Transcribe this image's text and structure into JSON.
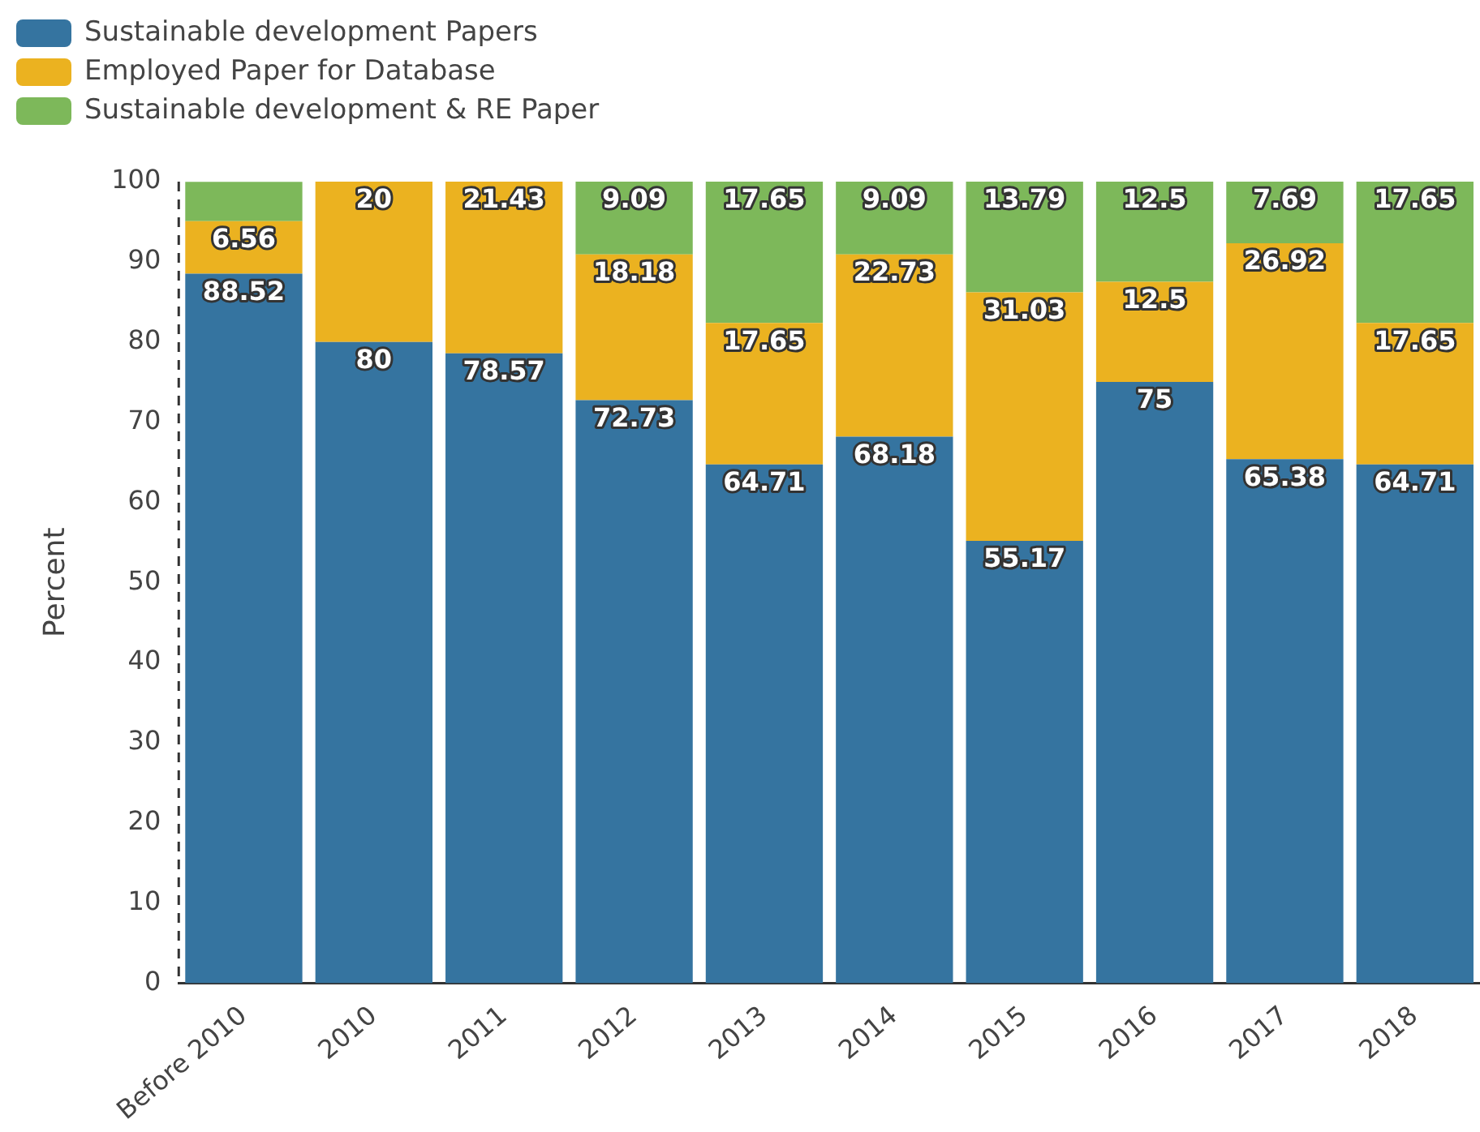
{
  "chart_data": {
    "type": "bar",
    "stacked": true,
    "ylabel": "Percent",
    "categories": [
      "Before 2010",
      "2010",
      "2011",
      "2012",
      "2013",
      "2014",
      "2015",
      "2016",
      "2017",
      "2018"
    ],
    "series": [
      {
        "name": "Sustainable development Papers",
        "color": "#3574a0",
        "values": [
          88.52,
          80,
          78.57,
          72.73,
          64.71,
          68.18,
          55.17,
          75,
          65.38,
          64.71
        ],
        "value_labels": [
          "88.52",
          "80",
          "78.57",
          "72.73",
          "64.71",
          "68.18",
          "55.17",
          "75",
          "65.38",
          "64.71"
        ]
      },
      {
        "name": "Employed Paper for Database",
        "color": "#ebb220",
        "values": [
          6.56,
          20,
          21.43,
          18.18,
          17.65,
          22.73,
          31.03,
          12.5,
          26.92,
          17.65
        ],
        "value_labels": [
          "6.56",
          "20",
          "21.43",
          "18.18",
          "17.65",
          "22.73",
          "31.03",
          "12.5",
          "26.92",
          "17.65"
        ]
      },
      {
        "name": "Sustainable development & RE Paper",
        "color": "#7db85a",
        "values": [
          4.9,
          0,
          0,
          9.09,
          17.65,
          9.09,
          13.79,
          12.5,
          7.69,
          17.65
        ],
        "value_labels": [
          null,
          null,
          null,
          "9.09",
          "17.65",
          "9.09",
          "13.79",
          "12.5",
          "7.69",
          "17.65"
        ]
      }
    ],
    "ylim": [
      0,
      100
    ],
    "yticks": [
      0,
      10,
      20,
      30,
      40,
      50,
      60,
      70,
      80,
      90,
      100
    ],
    "grid": false,
    "legend": "top left"
  }
}
